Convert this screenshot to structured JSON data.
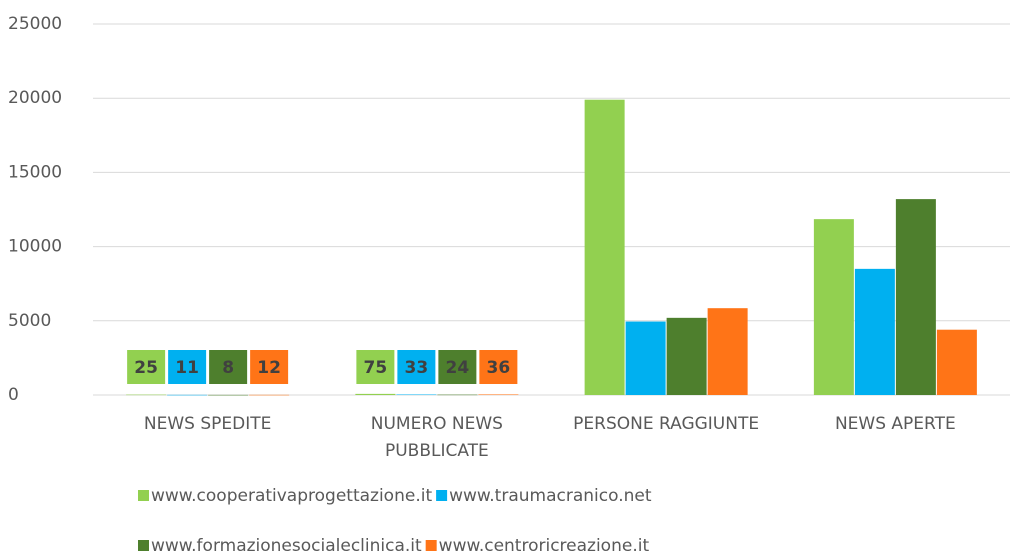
{
  "chart_data": {
    "type": "bar",
    "categories": [
      "NEWS SPEDITE",
      "NUMERO NEWS PUBBLICATE",
      "PERSONE RAGGIUNTE",
      "NEWS APERTE"
    ],
    "series": [
      {
        "name": "www.cooperativaprogettazione.it",
        "color": "#92d050",
        "values": [
          25,
          75,
          19900,
          11850
        ]
      },
      {
        "name": "www.traumacranico.net",
        "color": "#00b0f0",
        "values": [
          11,
          33,
          4950,
          8500
        ]
      },
      {
        "name": "www.formazionesocialeclinica.it",
        "color": "#4e7f2d",
        "values": [
          8,
          24,
          5200,
          13200
        ]
      },
      {
        "name": "www.centroricreazione.it",
        "color": "#ff7417",
        "values": [
          12,
          36,
          5850,
          4400
        ]
      }
    ],
    "data_labels": [
      true,
      true,
      false,
      false
    ],
    "ylim": [
      0,
      25000
    ],
    "yticks": [
      0,
      5000,
      10000,
      15000,
      20000,
      25000
    ],
    "grid": true,
    "legend": "bottom"
  }
}
